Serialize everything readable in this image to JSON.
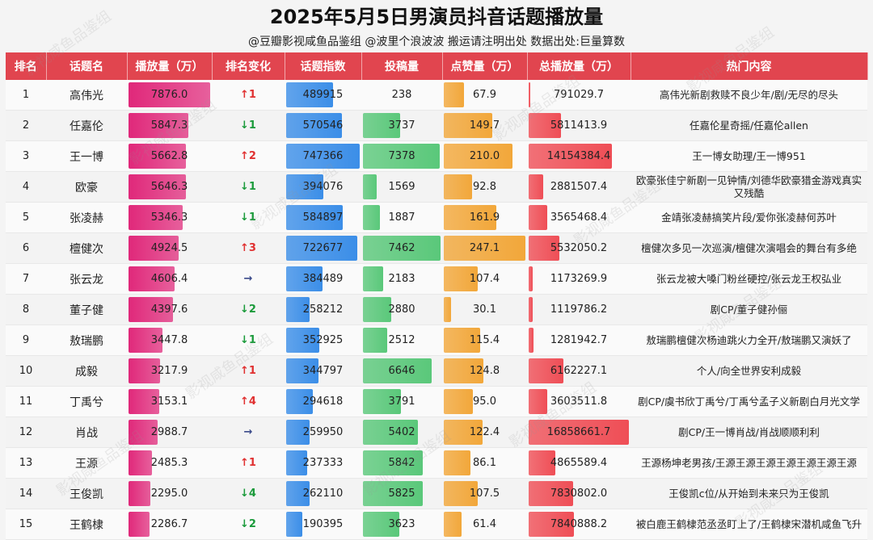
{
  "title": "2025年5月5日男演员抖音话题播放量",
  "subtitle": "@豆瓣影视咸鱼品鉴组 @波里个浪波波  搬运请注明出处  数据出处:巨量算数",
  "watermark": "影视咸鱼品鉴组",
  "colors": {
    "header": "#e1454f",
    "play": "#e0287a",
    "index": "#3b8ee8",
    "posts": "#5ac87a",
    "likes": "#f2a73a",
    "total": "#ef4e56",
    "up": "#e03030",
    "down": "#1a9a3a"
  },
  "chart_data": {
    "type": "table",
    "columns": [
      "排名",
      "话题名",
      "播放量（万）",
      "排名变化",
      "话题指数",
      "投稿量",
      "点赞量（万）",
      "总播放量（万）",
      "热门内容"
    ],
    "rows": [
      {
        "rank": "1",
        "name": "高伟光",
        "play": 7876.0,
        "change": "↑1",
        "dir": "up",
        "index": 489915,
        "posts": 238,
        "likes": 67.9,
        "total": 791029.7,
        "hot": "高伟光新剧救赎不良少年/剧/无尽的尽头"
      },
      {
        "rank": "2",
        "name": "任嘉伦",
        "play": 5847.3,
        "change": "↓1",
        "dir": "down",
        "index": 570546,
        "posts": 3737,
        "likes": 149.7,
        "total": 5811413.9,
        "hot": "任嘉伦星奇摇/任嘉伦allen"
      },
      {
        "rank": "3",
        "name": "王一博",
        "play": 5662.8,
        "change": "↑2",
        "dir": "up",
        "index": 747366,
        "posts": 7378,
        "likes": 210.0,
        "total": 14154384.4,
        "hot": "王一博女助理/王一博951"
      },
      {
        "rank": "4",
        "name": "欧豪",
        "play": 5646.3,
        "change": "↓1",
        "dir": "down",
        "index": 394076,
        "posts": 1569,
        "likes": 92.8,
        "total": 2881507.4,
        "hot": "欧豪张佳宁新剧一见钟情/刘德华欧豪猎金游戏真实又残酷"
      },
      {
        "rank": "5",
        "name": "张凌赫",
        "play": 5346.3,
        "change": "↓1",
        "dir": "down",
        "index": 584897,
        "posts": 1887,
        "likes": 161.9,
        "total": 3565468.4,
        "hot": "金靖张凌赫搞笑片段/爱你张凌赫何苏叶"
      },
      {
        "rank": "6",
        "name": "檀健次",
        "play": 4924.5,
        "change": "↑3",
        "dir": "up",
        "index": 722677,
        "posts": 7462,
        "likes": 247.1,
        "total": 5532050.2,
        "hot": "檀健次多见一次巡演/檀健次演唱会的舞台有多绝"
      },
      {
        "rank": "7",
        "name": "张云龙",
        "play": 4606.4,
        "change": "→",
        "dir": "flat",
        "index": 384489,
        "posts": 2183,
        "likes": 107.4,
        "total": 1173269.9,
        "hot": "张云龙被大嗓门粉丝硬控/张云龙王权弘业"
      },
      {
        "rank": "8",
        "name": "董子健",
        "play": 4397.6,
        "change": "↓2",
        "dir": "down",
        "index": 258212,
        "posts": 2880,
        "likes": 30.1,
        "total": 1119786.2,
        "hot": "剧CP/董子健孙俪"
      },
      {
        "rank": "9",
        "name": "敖瑞鹏",
        "play": 3447.8,
        "change": "↓1",
        "dir": "down",
        "index": 352925,
        "posts": 2512,
        "likes": 115.4,
        "total": 1281942.7,
        "hot": "敖瑞鹏檀健次杨迪跳火力全开/敖瑞鹏又演妖了"
      },
      {
        "rank": "10",
        "name": "成毅",
        "play": 3217.9,
        "change": "↑1",
        "dir": "up",
        "index": 344797,
        "posts": 6646,
        "likes": 124.8,
        "total": 6162227.1,
        "hot": "个人/向全世界安利成毅"
      },
      {
        "rank": "11",
        "name": "丁禹兮",
        "play": 3153.1,
        "change": "↑4",
        "dir": "up",
        "index": 294618,
        "posts": 3791,
        "likes": 95.0,
        "total": 3603511.8,
        "hot": "剧CP/虞书欣丁禹兮/丁禹兮孟子义新剧白月光文学"
      },
      {
        "rank": "12",
        "name": "肖战",
        "play": 2988.7,
        "change": "→",
        "dir": "flat",
        "index": 259950,
        "posts": 5402,
        "likes": 122.4,
        "total": 16858661.7,
        "hot": "剧CP/王一博肖战/肖战顺顺利利"
      },
      {
        "rank": "13",
        "name": "王源",
        "play": 2485.3,
        "change": "↑1",
        "dir": "up",
        "index": 237333,
        "posts": 5842,
        "likes": 86.1,
        "total": 4865589.4,
        "hot": "王源杨坤老男孩/王源王源王源王源王源王源王源"
      },
      {
        "rank": "14",
        "name": "王俊凯",
        "play": 2295.0,
        "change": "↓4",
        "dir": "down",
        "index": 262110,
        "posts": 5825,
        "likes": 107.5,
        "total": 7830802.0,
        "hot": "王俊凯c位/从开始到未来只为王俊凯"
      },
      {
        "rank": "15",
        "name": "王鹤棣",
        "play": 2286.7,
        "change": "↓2",
        "dir": "down",
        "index": 190395,
        "posts": 3623,
        "likes": 61.4,
        "total": 7840888.2,
        "hot": "被白鹿王鹤棣范丞丞盯上了/王鹤棣宋潜机咸鱼飞升"
      }
    ]
  }
}
